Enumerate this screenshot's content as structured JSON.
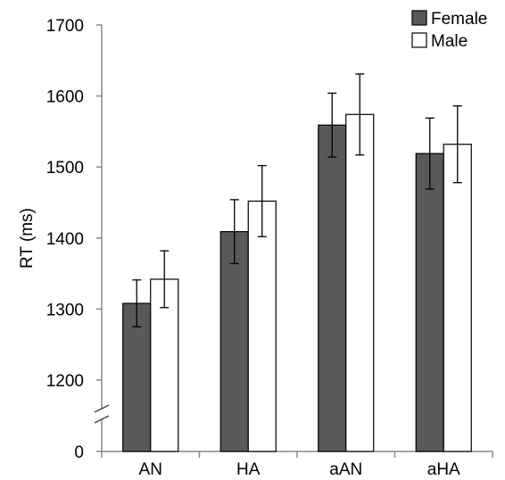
{
  "chart_data": {
    "type": "bar",
    "ylabel": "RT (ms)",
    "xlabel": "",
    "ylim": [
      1150,
      1700
    ],
    "y_axis_break": true,
    "y_ticks": [
      "0",
      "1200",
      "1300",
      "1400",
      "1500",
      "1600",
      "1700"
    ],
    "categories": [
      "AN",
      "HA",
      "aAN",
      "aHA"
    ],
    "series": [
      {
        "name": "Female",
        "values": [
          1308,
          1409,
          1559,
          1519
        ],
        "error": [
          33,
          45,
          45,
          50
        ],
        "color": "#595959"
      },
      {
        "name": "Male",
        "values": [
          1342,
          1452,
          1574,
          1532
        ],
        "error": [
          40,
          50,
          57,
          54
        ],
        "color": "#ffffff"
      }
    ],
    "legend_position": "top-right",
    "grid": false
  }
}
